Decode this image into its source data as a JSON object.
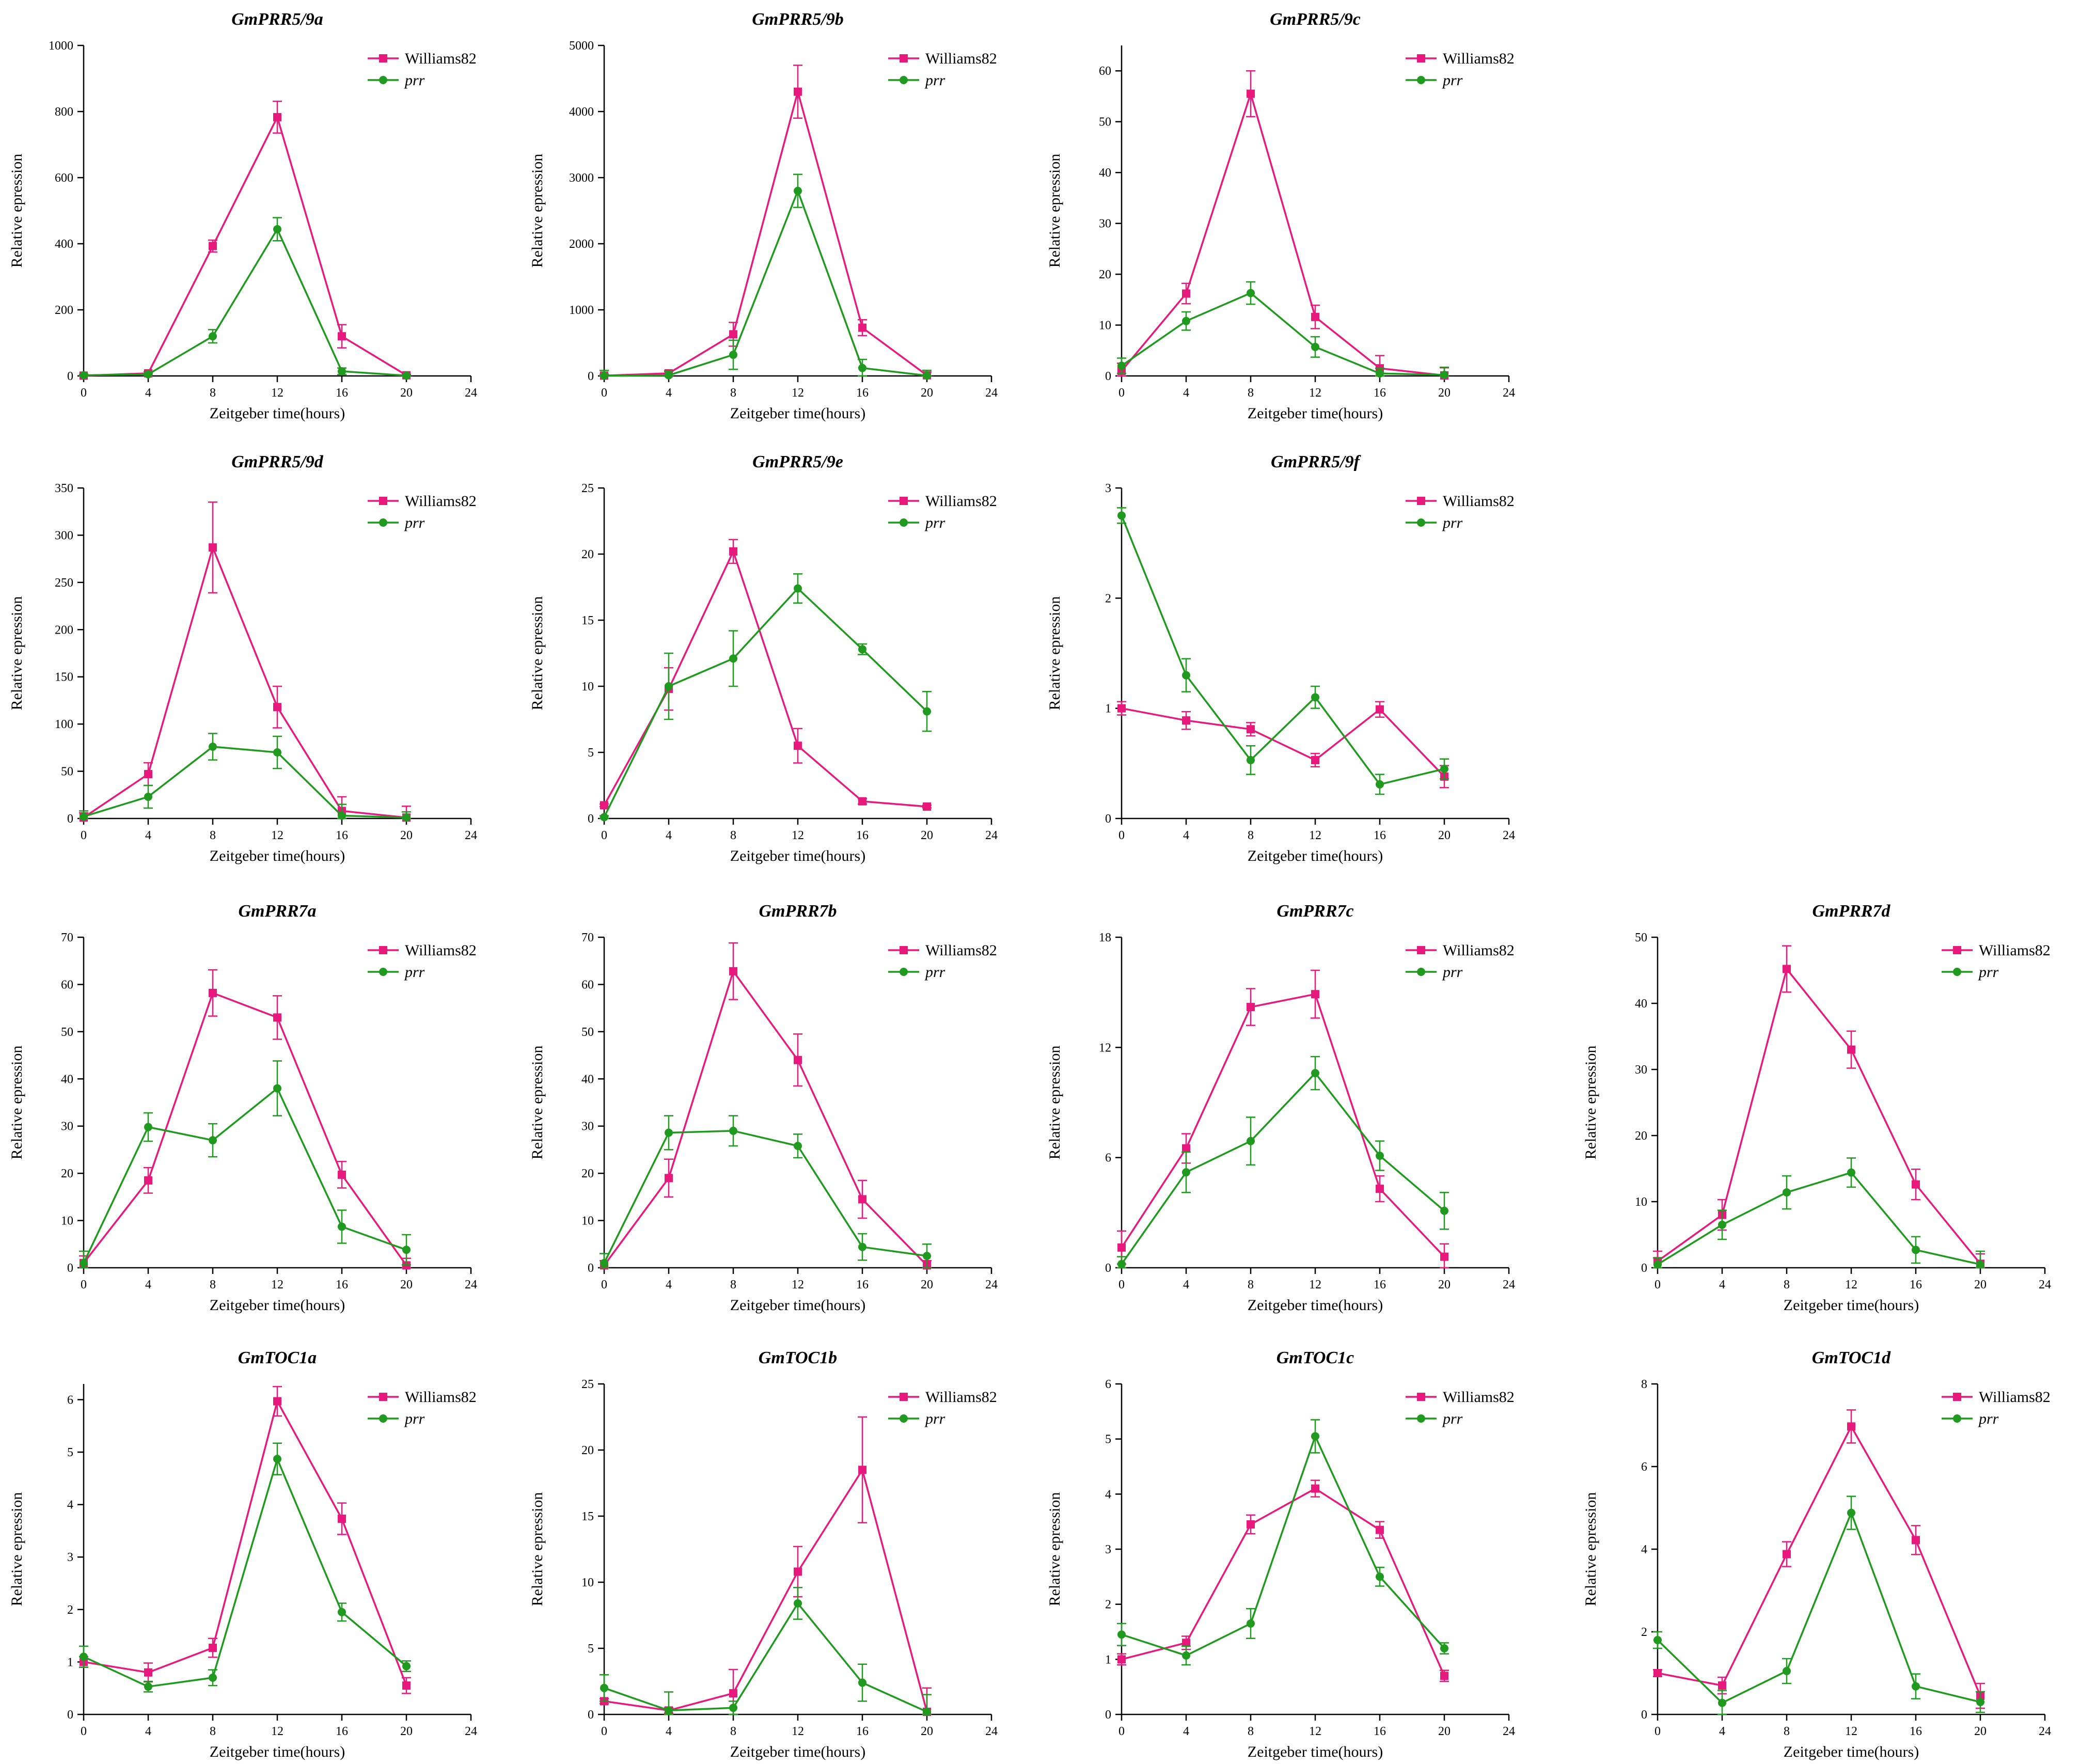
{
  "figure": {
    "xlabel": "Zeitgeber time(hours)",
    "ylabel": "Relative epression",
    "legend": [
      "Williams82",
      "prr"
    ],
    "colors": {
      "Williams82": "#e8197d",
      "prr": "#1f9a1f"
    }
  },
  "chart_data": [
    {
      "type": "line",
      "title": "GmPRR5/9a",
      "xlabel": "Zeitgeber time(hours)",
      "ylabel": "Relative epression",
      "x": [
        0,
        4,
        8,
        12,
        16,
        20
      ],
      "xticks": [
        0,
        4,
        8,
        12,
        16,
        20,
        24
      ],
      "ylim": [
        0,
        1000
      ],
      "yticks": [
        0,
        200,
        400,
        600,
        800,
        1000
      ],
      "legend": "top-right",
      "series": [
        {
          "name": "Williams82",
          "values": [
            1,
            8,
            393,
            783,
            120,
            2
          ],
          "errors": [
            3,
            5,
            18,
            48,
            35,
            3
          ]
        },
        {
          "name": "prr",
          "values": [
            2,
            5,
            120,
            444,
            14,
            1
          ],
          "errors": [
            3,
            3,
            20,
            35,
            10,
            2
          ]
        }
      ]
    },
    {
      "type": "line",
      "title": "GmPRR5/9b",
      "xlabel": "Zeitgeber time(hours)",
      "ylabel": "Relative epression",
      "x": [
        0,
        4,
        8,
        12,
        16,
        20
      ],
      "xticks": [
        0,
        4,
        8,
        12,
        16,
        20,
        24
      ],
      "ylim": [
        0,
        5000
      ],
      "yticks": [
        0,
        1000,
        2000,
        3000,
        4000,
        5000
      ],
      "legend": "top-right",
      "series": [
        {
          "name": "Williams82",
          "values": [
            5,
            40,
            630,
            4300,
            730,
            10
          ],
          "errors": [
            20,
            40,
            180,
            400,
            120,
            50
          ]
        },
        {
          "name": "prr",
          "values": [
            3,
            10,
            320,
            2800,
            120,
            5
          ],
          "errors": [
            80,
            60,
            220,
            250,
            130,
            80
          ]
        }
      ]
    },
    {
      "type": "line",
      "title": "GmPRR5/9c",
      "xlabel": "Zeitgeber time(hours)",
      "ylabel": "Relative epression",
      "x": [
        0,
        4,
        8,
        12,
        16,
        20
      ],
      "xticks": [
        0,
        4,
        8,
        12,
        16,
        20,
        24
      ],
      "ylim": [
        0,
        65
      ],
      "yticks": [
        0,
        10,
        20,
        30,
        40,
        50,
        60
      ],
      "legend": "top-right",
      "series": [
        {
          "name": "Williams82",
          "values": [
            1,
            16.2,
            55.5,
            11.6,
            1.5,
            0.1
          ],
          "errors": [
            1.5,
            2,
            4.5,
            2.3,
            2.5,
            1.5
          ]
        },
        {
          "name": "prr",
          "values": [
            2,
            10.8,
            16.3,
            5.7,
            0.5,
            0.2
          ],
          "errors": [
            1.5,
            1.8,
            2.2,
            2,
            1,
            1.5
          ]
        }
      ]
    },
    {
      "type": "line",
      "title": "GmPRR5/9d",
      "xlabel": "Zeitgeber time(hours)",
      "ylabel": "Relative epression",
      "x": [
        0,
        4,
        8,
        12,
        16,
        20
      ],
      "xticks": [
        0,
        4,
        8,
        12,
        16,
        20,
        24
      ],
      "ylim": [
        0,
        350
      ],
      "yticks": [
        0,
        50,
        100,
        150,
        200,
        250,
        300,
        350
      ],
      "legend": "top-right",
      "series": [
        {
          "name": "Williams82",
          "values": [
            1,
            47,
            287,
            118,
            8,
            1
          ],
          "errors": [
            5,
            12,
            48,
            22,
            15,
            12
          ]
        },
        {
          "name": "prr",
          "values": [
            2,
            23,
            76,
            70,
            3,
            1
          ],
          "errors": [
            6,
            12,
            14,
            17,
            12,
            6
          ]
        }
      ]
    },
    {
      "type": "line",
      "title": "GmPRR5/9e",
      "xlabel": "Zeitgeber time(hours)",
      "ylabel": "Relative epression",
      "x": [
        0,
        4,
        8,
        12,
        16,
        20
      ],
      "xticks": [
        0,
        4,
        8,
        12,
        16,
        20,
        24
      ],
      "ylim": [
        0,
        25
      ],
      "yticks": [
        0,
        5,
        10,
        15,
        20,
        25
      ],
      "legend": "top-right",
      "series": [
        {
          "name": "Williams82",
          "values": [
            1,
            9.8,
            20.2,
            5.5,
            1.3,
            0.9
          ],
          "errors": [
            0.1,
            1.6,
            0.9,
            1.3,
            0.2,
            0.1
          ]
        },
        {
          "name": "prr",
          "values": [
            0.1,
            10,
            12.1,
            17.4,
            12.8,
            8.1
          ],
          "errors": [
            0.1,
            2.5,
            2.1,
            1.1,
            0.4,
            1.5
          ]
        }
      ]
    },
    {
      "type": "line",
      "title": "GmPRR5/9f",
      "xlabel": "Zeitgeber time(hours)",
      "ylabel": "Relative epression",
      "x": [
        0,
        4,
        8,
        12,
        16,
        20
      ],
      "xticks": [
        0,
        4,
        8,
        12,
        16,
        20,
        24
      ],
      "ylim": [
        0,
        3
      ],
      "yticks": [
        0,
        1,
        2,
        3
      ],
      "legend": "top-right",
      "series": [
        {
          "name": "Williams82",
          "values": [
            1,
            0.89,
            0.81,
            0.53,
            0.99,
            0.38
          ],
          "errors": [
            0.06,
            0.08,
            0.06,
            0.06,
            0.07,
            0.1
          ]
        },
        {
          "name": "prr",
          "values": [
            2.75,
            1.3,
            0.53,
            1.1,
            0.31,
            0.45
          ],
          "errors": [
            0.07,
            0.15,
            0.13,
            0.1,
            0.09,
            0.09
          ]
        }
      ]
    },
    {
      "type": "line",
      "title": "GmPRR7a",
      "xlabel": "Zeitgeber time(hours)",
      "ylabel": "Relative epression",
      "x": [
        0,
        4,
        8,
        12,
        16,
        20
      ],
      "xticks": [
        0,
        4,
        8,
        12,
        16,
        20,
        24
      ],
      "ylim": [
        0,
        70
      ],
      "yticks": [
        0,
        10,
        20,
        30,
        40,
        50,
        60,
        70
      ],
      "legend": "top-right",
      "series": [
        {
          "name": "Williams82",
          "values": [
            1,
            18.5,
            58.2,
            53,
            19.7,
            0.5
          ],
          "errors": [
            1.5,
            2.7,
            4.9,
            4.6,
            2.8,
            1.5
          ]
        },
        {
          "name": "prr",
          "values": [
            1,
            29.8,
            27,
            38,
            8.7,
            3.8
          ],
          "errors": [
            2.5,
            3,
            3.5,
            5.8,
            3.5,
            3.2
          ]
        }
      ]
    },
    {
      "type": "line",
      "title": "GmPRR7b",
      "xlabel": "Zeitgeber time(hours)",
      "ylabel": "Relative epression",
      "x": [
        0,
        4,
        8,
        12,
        16,
        20
      ],
      "xticks": [
        0,
        4,
        8,
        12,
        16,
        20,
        24
      ],
      "ylim": [
        0,
        70
      ],
      "yticks": [
        0,
        10,
        20,
        30,
        40,
        50,
        60,
        70
      ],
      "legend": "top-right",
      "series": [
        {
          "name": "Williams82",
          "values": [
            0.5,
            19,
            62.8,
            44,
            14.5,
            0.5
          ],
          "errors": [
            1,
            4,
            6,
            5.5,
            4,
            1
          ]
        },
        {
          "name": "prr",
          "values": [
            1,
            28.6,
            29,
            25.8,
            4.4,
            2.5
          ],
          "errors": [
            2,
            3.6,
            3.2,
            2.5,
            2.8,
            2.5
          ]
        }
      ]
    },
    {
      "type": "line",
      "title": "GmPRR7c",
      "xlabel": "Zeitgeber time(hours)",
      "ylabel": "Relative epression",
      "x": [
        0,
        4,
        8,
        12,
        16,
        20
      ],
      "xticks": [
        0,
        4,
        8,
        12,
        16,
        20,
        24
      ],
      "ylim": [
        0,
        18
      ],
      "yticks": [
        0,
        6,
        12,
        18
      ],
      "legend": "top-right",
      "series": [
        {
          "name": "Williams82",
          "values": [
            1.1,
            6.5,
            14.2,
            14.9,
            4.3,
            0.6
          ],
          "errors": [
            0.9,
            0.8,
            1,
            1.3,
            0.7,
            0.7
          ]
        },
        {
          "name": "prr",
          "values": [
            0.2,
            5.2,
            6.9,
            10.6,
            6.1,
            3.1
          ],
          "errors": [
            0.4,
            1.1,
            1.3,
            0.9,
            0.8,
            1
          ]
        }
      ]
    },
    {
      "type": "line",
      "title": "GmPRR7d",
      "xlabel": "Zeitgeber time(hours)",
      "ylabel": "Relative epression",
      "x": [
        0,
        4,
        8,
        12,
        16,
        20
      ],
      "xticks": [
        0,
        4,
        8,
        12,
        16,
        20,
        24
      ],
      "ylim": [
        0,
        50
      ],
      "yticks": [
        0,
        10,
        20,
        30,
        40,
        50
      ],
      "legend": "top-right",
      "series": [
        {
          "name": "Williams82",
          "values": [
            1,
            8,
            45.2,
            33,
            12.6,
            0.6
          ],
          "errors": [
            1.5,
            2.3,
            3.5,
            2.8,
            2.3,
            1.5
          ]
        },
        {
          "name": "prr",
          "values": [
            0.5,
            6.5,
            11.4,
            14.4,
            2.7,
            0.5
          ],
          "errors": [
            1,
            2.2,
            2.5,
            2.2,
            2,
            2
          ]
        }
      ]
    },
    {
      "type": "line",
      "title": "GmTOC1a",
      "xlabel": "Zeitgeber time(hours)",
      "ylabel": "Relative epression",
      "x": [
        0,
        4,
        8,
        12,
        16,
        20
      ],
      "xticks": [
        0,
        4,
        8,
        12,
        16,
        20,
        24
      ],
      "ylim": [
        0,
        6.3
      ],
      "yticks": [
        0,
        1,
        2,
        3,
        4,
        5,
        6
      ],
      "legend": "top-right",
      "series": [
        {
          "name": "Williams82",
          "values": [
            1,
            0.8,
            1.27,
            5.97,
            3.73,
            0.55
          ],
          "errors": [
            0.1,
            0.18,
            0.18,
            0.28,
            0.3,
            0.15
          ]
        },
        {
          "name": "prr",
          "values": [
            1.1,
            0.53,
            0.7,
            4.87,
            1.95,
            0.92
          ],
          "errors": [
            0.2,
            0.1,
            0.15,
            0.3,
            0.17,
            0.1
          ]
        }
      ]
    },
    {
      "type": "line",
      "title": "GmTOC1b",
      "xlabel": "Zeitgeber time(hours)",
      "ylabel": "Relative epression",
      "x": [
        0,
        4,
        8,
        12,
        16,
        20
      ],
      "xticks": [
        0,
        4,
        8,
        12,
        16,
        20,
        24
      ],
      "ylim": [
        0,
        25
      ],
      "yticks": [
        0,
        5,
        10,
        15,
        20,
        25
      ],
      "legend": "top-right",
      "series": [
        {
          "name": "Williams82",
          "values": [
            1,
            0.3,
            1.6,
            10.8,
            18.5,
            0.2
          ],
          "errors": [
            0.2,
            0.2,
            1.8,
            1.9,
            4,
            1.8
          ]
        },
        {
          "name": "prr",
          "values": [
            2,
            0.3,
            0.5,
            8.4,
            2.4,
            0.2
          ],
          "errors": [
            1,
            1.4,
            0.5,
            1.2,
            1.4,
            1.3
          ]
        }
      ]
    },
    {
      "type": "line",
      "title": "GmTOC1c",
      "xlabel": "Zeitgeber time(hours)",
      "ylabel": "Relative epression",
      "x": [
        0,
        4,
        8,
        12,
        16,
        20
      ],
      "xticks": [
        0,
        4,
        8,
        12,
        16,
        20,
        24
      ],
      "ylim": [
        0,
        6
      ],
      "yticks": [
        0,
        1,
        2,
        3,
        4,
        5,
        6
      ],
      "legend": "top-right",
      "series": [
        {
          "name": "Williams82",
          "values": [
            1,
            1.3,
            3.45,
            4.1,
            3.35,
            0.7
          ],
          "errors": [
            0.1,
            0.12,
            0.17,
            0.15,
            0.15,
            0.1
          ]
        },
        {
          "name": "prr",
          "values": [
            1.45,
            1.07,
            1.65,
            5.05,
            2.5,
            1.2
          ],
          "errors": [
            0.2,
            0.17,
            0.27,
            0.3,
            0.17,
            0.1
          ]
        }
      ]
    },
    {
      "type": "line",
      "title": "GmTOC1d",
      "xlabel": "Zeitgeber time(hours)",
      "ylabel": "Relative epression",
      "x": [
        0,
        4,
        8,
        12,
        16,
        20
      ],
      "xticks": [
        0,
        4,
        8,
        12,
        16,
        20,
        24
      ],
      "ylim": [
        0,
        8
      ],
      "yticks": [
        0,
        2,
        4,
        6,
        8
      ],
      "legend": "top-right",
      "series": [
        {
          "name": "Williams82",
          "values": [
            1,
            0.7,
            3.88,
            6.97,
            4.22,
            0.45
          ],
          "errors": [
            0.08,
            0.2,
            0.3,
            0.4,
            0.35,
            0.3
          ]
        },
        {
          "name": "prr",
          "values": [
            1.8,
            0.28,
            1.05,
            4.88,
            0.68,
            0.3
          ],
          "errors": [
            0.2,
            0.3,
            0.3,
            0.4,
            0.3,
            0.25
          ]
        }
      ]
    }
  ]
}
